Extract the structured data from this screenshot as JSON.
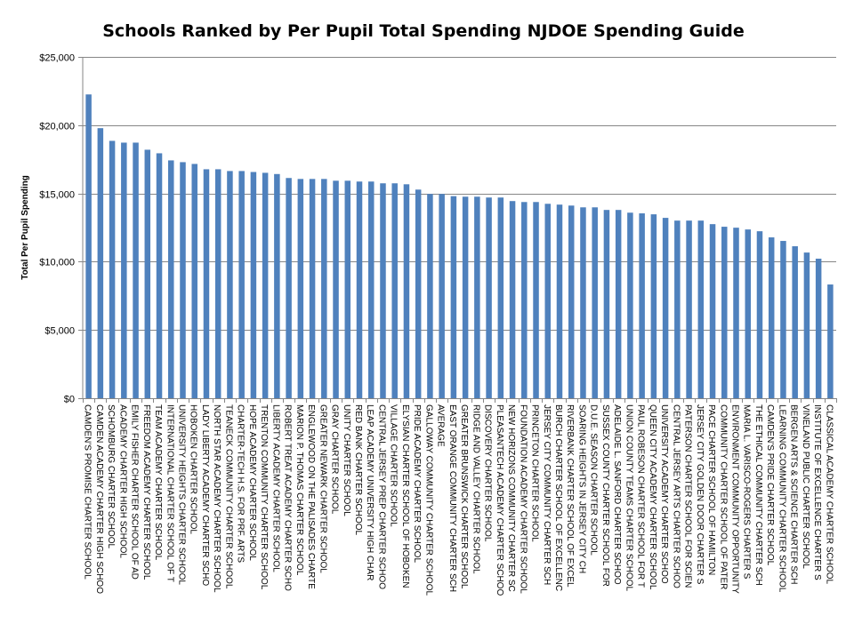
{
  "chart_data": {
    "type": "bar",
    "title": "Schools Ranked by Per Pupil Total Spending NJDOE Spending Guide",
    "xlabel": "",
    "ylabel": "Total Per Pupil Spending",
    "ylim": [
      0,
      25000
    ],
    "yticks": [
      0,
      5000,
      10000,
      15000,
      20000,
      25000
    ],
    "ytick_labels": [
      "$0",
      "$5,000",
      "$10,000",
      "$15,000",
      "$20,000",
      "$25,000"
    ],
    "grid": true,
    "legend": "none",
    "bar_color": "#4F81BD",
    "grid_color": "#868686",
    "categories": [
      "CAMDEN'S PROMISE CHARTER SCHOOL",
      "CAMDEN ACADEMY CHARTER HIGH SCHOO",
      "SCHOMBURG CHARTER SCHOOL",
      "ACADEMY CHARTER HIGH SCHOOL",
      "EMILY FISHER CHARTER SCHOOL OF AD",
      "FREEDOM ACADEMY CHARTER SCHOOL",
      "TEAM ACADEMY CHARTER SCHOOL",
      "INTERNATIONAL CHARTER SCHOOL OF T",
      "UNIVERSITY HEIGHTS CHARTER SCHOOL",
      "HOBOKEN CHARTER SCHOOL",
      "LADY LIBERTY ACADEMY CHARTER SCHO",
      "NORTH STAR ACADEMY CHARTER SCHOOL",
      "TEANECK COMMUNITY CHARTER SCHOOL",
      "CHARTER-TECH H.S. FOR PRF. ARTS",
      "HOPE ACADEMY CHARTER SCHOOL",
      "TRENTON COMMUNITY CHARTER SCHOOL",
      "LIBERTY ACADEMY CHARTER SCHOOL",
      "ROBERT TREAT ACADEMY CHARTER SCHO",
      "MARION P. THOMAS CHARTER SCHOOL",
      "ENGLEWOOD ON THE PALISADES CHARTE",
      "GREATER NEWARK CHARTER SCHOOL",
      "GRAY CHARTER SCHOOL",
      "UNITY CHARTER SCHOOL",
      "RED BANK CHARTER SCHOOL",
      "LEAP ACADEMY UNIVERSITY HIGH CHAR",
      "CENTRAL JERSEY PREP CHARTER SCHOO",
      "VILLAGE CHARTER SCHOOL",
      "ELYSIAN CHARTER SCHOOL OF HOBOKEN",
      "PRIDE ACADEMY CHARTER SCHOOL",
      "GALLOWAY COMMUNITY CHARTER SCHOOL",
      "AVERAGE",
      "EAST ORANGE COMMUNITY CHARTER SCH",
      "GREATER BRUNSWICK CHARTER SCHOOL",
      "RIDGE AND VALLEY CHARTER SCHOOL",
      "DISCOVERY CHARTER SCHOOL",
      "PLEASANTECH ACADEMY CHARTER SCHOO",
      "NEW HORIZONS COMMUNITY CHARTER SC",
      "FOUNDATION ACADEMY CHARTER SCHOOL",
      "PRINCETON CHARTER SCHOOL",
      "JERSEY CITY COMMUNITY CHARTER SCH",
      "BURCH CHARTER SCHOOL OF EXCELLENC",
      "RIVERBANK CHARTER SCHOOL OF EXCEL",
      "SOARING HEIGHTS IN JERSEY CITY CH",
      "D.U.E. SEASON CHARTER SCHOOL",
      "SUSSEX COUNTY CHARTER SCHOOL FOR",
      "ADELAIDE L. SANFORD CHARTER SCHOO",
      "UNION COUNTY TEAMS CHARTER SCHOOL",
      "PAUL ROBESON CHARTER SCHOOL FOR T",
      "QUEEN CITY ACADEMY CHARTER SCHOOL",
      "UNIVERSITY ACADEMY CHARTER SCHOO",
      "CENTRAL JERSEY ARTS CHARTER SCHOO",
      "PATERSON CHARTER SCHOOL FOR SCIEN",
      "JERSEY CITY GOLDEN DOOR CHARTER S",
      "PACE CHARTER SCHOOL OF HAMILTON",
      "COMMUNITY CHARTER SCHOOL OF PATER",
      "ENVIRONMENT COMMUNITY OPPORTUNITY",
      "MARIA L. VARISCO-ROGERS CHARTER S",
      "THE ETHICAL COMMUNITY CHARTER SCH",
      "CAMDEN'S PRIDE CHARTER SCHOOL",
      "LEARNING COMMUNITY CHARTER SCHOOL",
      "BERGEN ARTS & SCIENCE CHARTER SCH",
      "VINELAND PUBLIC CHARTER SCHOOL",
      "INSTITUTE OF EXCELLENCE CHARTER S",
      "CLASSICAL ACADEMY CHARTER SCHOOL"
    ],
    "values": [
      22250,
      19780,
      18850,
      18720,
      18720,
      18200,
      17940,
      17420,
      17290,
      17160,
      16770,
      16770,
      16640,
      16640,
      16570,
      16510,
      16420,
      16130,
      16060,
      16060,
      16060,
      15930,
      15930,
      15870,
      15870,
      15740,
      15740,
      15670,
      15280,
      14960,
      14960,
      14800,
      14760,
      14760,
      14700,
      14700,
      14440,
      14370,
      14370,
      14240,
      14180,
      14110,
      13980,
      13980,
      13790,
      13790,
      13590,
      13540,
      13470,
      13210,
      13010,
      13010,
      13010,
      12750,
      12560,
      12490,
      12360,
      12230,
      11780,
      11520,
      11130,
      10670,
      10220,
      8330
    ]
  }
}
